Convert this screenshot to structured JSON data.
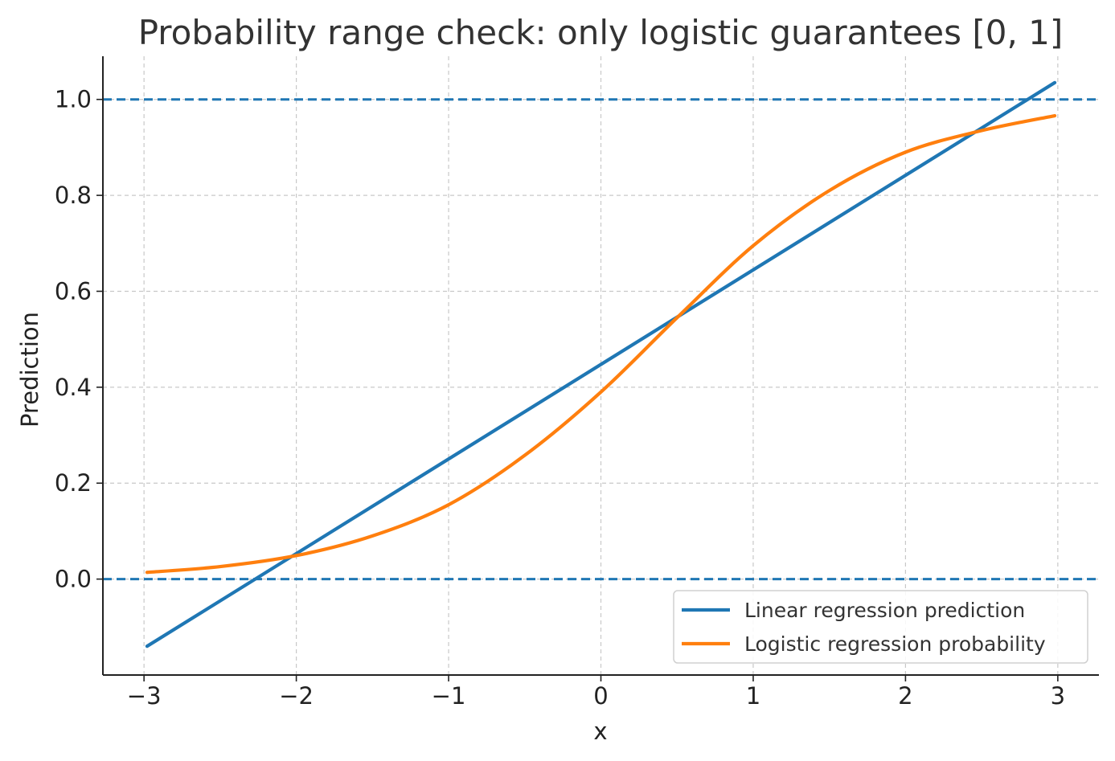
{
  "chart_data": {
    "type": "line",
    "title": "Probability range check: only logistic guarantees [0, 1]",
    "xlabel": "x",
    "ylabel": "Prediction",
    "xlim": [
      -3.27,
      3.27
    ],
    "ylim": [
      -0.2,
      1.09
    ],
    "xticks": [
      -3,
      -2,
      -1,
      0,
      1,
      2,
      3
    ],
    "xtick_labels": [
      "−3",
      "−2",
      "−1",
      "0",
      "1",
      "2",
      "3"
    ],
    "yticks": [
      0.0,
      0.2,
      0.4,
      0.6,
      0.8,
      1.0
    ],
    "ytick_labels": [
      "0.0",
      "0.2",
      "0.4",
      "0.6",
      "0.8",
      "1.0"
    ],
    "grid": true,
    "legend_position": "lower-right",
    "series": [
      {
        "name": "Linear regression prediction",
        "color": "#1f77b4",
        "x": [
          -2.98,
          2.98
        ],
        "y": [
          -0.14,
          1.035
        ]
      },
      {
        "name": "Logistic regression probability",
        "color": "#ff7f0e",
        "x": [
          -2.98,
          -2.5,
          -2.0,
          -1.5,
          -1.0,
          -0.5,
          0.0,
          0.5,
          1.0,
          1.5,
          2.0,
          2.5,
          2.98
        ],
        "y": [
          0.014,
          0.026,
          0.049,
          0.09,
          0.155,
          0.258,
          0.39,
          0.545,
          0.695,
          0.81,
          0.89,
          0.935,
          0.966
        ]
      }
    ],
    "reference_lines": [
      {
        "axis": "y",
        "value": 0.0,
        "style": "dashed",
        "color": "#1f77b4"
      },
      {
        "axis": "y",
        "value": 1.0,
        "style": "dashed",
        "color": "#1f77b4"
      }
    ]
  }
}
